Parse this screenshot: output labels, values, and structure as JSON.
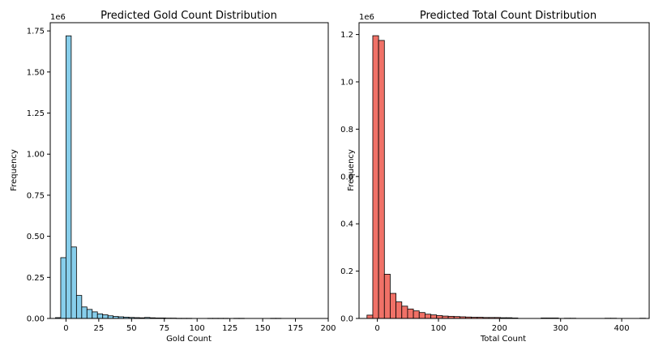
{
  "chart_data": [
    {
      "type": "bar",
      "title": "Predicted Gold Count Distribution",
      "xlabel": "Gold Count",
      "ylabel": "Frequency",
      "y_offset_text": "1e6",
      "color": "#87ceeb",
      "edgecolor": "#000000",
      "xlim": [
        -12,
        200
      ],
      "ylim": [
        0,
        1.8
      ],
      "xticks": [
        0,
        25,
        50,
        75,
        100,
        125,
        150,
        175,
        200
      ],
      "yticks": [
        0.0,
        0.25,
        0.5,
        0.75,
        1.0,
        1.25,
        1.5,
        1.75
      ],
      "ytick_labels": [
        "0.00",
        "0.25",
        "0.50",
        "0.75",
        "1.00",
        "1.25",
        "1.50",
        "1.75"
      ],
      "bin_width": 4,
      "bin_starts": [
        -8,
        -4,
        0,
        4,
        8,
        12,
        16,
        20,
        24,
        28,
        32,
        36,
        40,
        44,
        48,
        52,
        56,
        60,
        64,
        68,
        72,
        76,
        80,
        84,
        88,
        92,
        108,
        112,
        116,
        120,
        128,
        132,
        156,
        160
      ],
      "values": [
        0.005,
        0.37,
        1.72,
        0.435,
        0.14,
        0.07,
        0.055,
        0.04,
        0.028,
        0.022,
        0.016,
        0.012,
        0.01,
        0.008,
        0.006,
        0.005,
        0.004,
        0.006,
        0.004,
        0.003,
        0.003,
        0.002,
        0.002,
        0.001,
        0.001,
        0.001,
        0.001,
        0.001,
        0.001,
        0.001,
        0.001,
        0.001,
        0.001,
        0.001
      ]
    },
    {
      "type": "bar",
      "title": "Predicted Total Count Distribution",
      "xlabel": "Total Count",
      "ylabel": "Frequency",
      "y_offset_text": "1e6",
      "color": "#f07167",
      "edgecolor": "#000000",
      "xlim": [
        -30,
        445
      ],
      "ylim": [
        0,
        1.25
      ],
      "xticks": [
        0,
        100,
        200,
        300,
        400
      ],
      "yticks": [
        0.0,
        0.2,
        0.4,
        0.6,
        0.8,
        1.0,
        1.2
      ],
      "ytick_labels": [
        "0.0",
        "0.2",
        "0.4",
        "0.6",
        "0.8",
        "1.0",
        "1.2"
      ],
      "bin_width": 9.5,
      "bin_starts": [
        -17,
        -7.5,
        2,
        11.5,
        21,
        30.5,
        40,
        49.5,
        59,
        68.5,
        78,
        87.5,
        97,
        106.5,
        116,
        125.5,
        135,
        144.5,
        154,
        163.5,
        173,
        182.5,
        192,
        201.5,
        211,
        220.5,
        268,
        277.5,
        287,
        306,
        315.5,
        372.5,
        382,
        429.5
      ],
      "values": [
        0.014,
        1.195,
        1.175,
        0.187,
        0.106,
        0.07,
        0.052,
        0.04,
        0.032,
        0.025,
        0.018,
        0.015,
        0.012,
        0.01,
        0.009,
        0.008,
        0.007,
        0.006,
        0.005,
        0.005,
        0.004,
        0.004,
        0.004,
        0.003,
        0.003,
        0.002,
        0.002,
        0.002,
        0.002,
        0.001,
        0.001,
        0.001,
        0.001,
        0.001
      ]
    }
  ]
}
